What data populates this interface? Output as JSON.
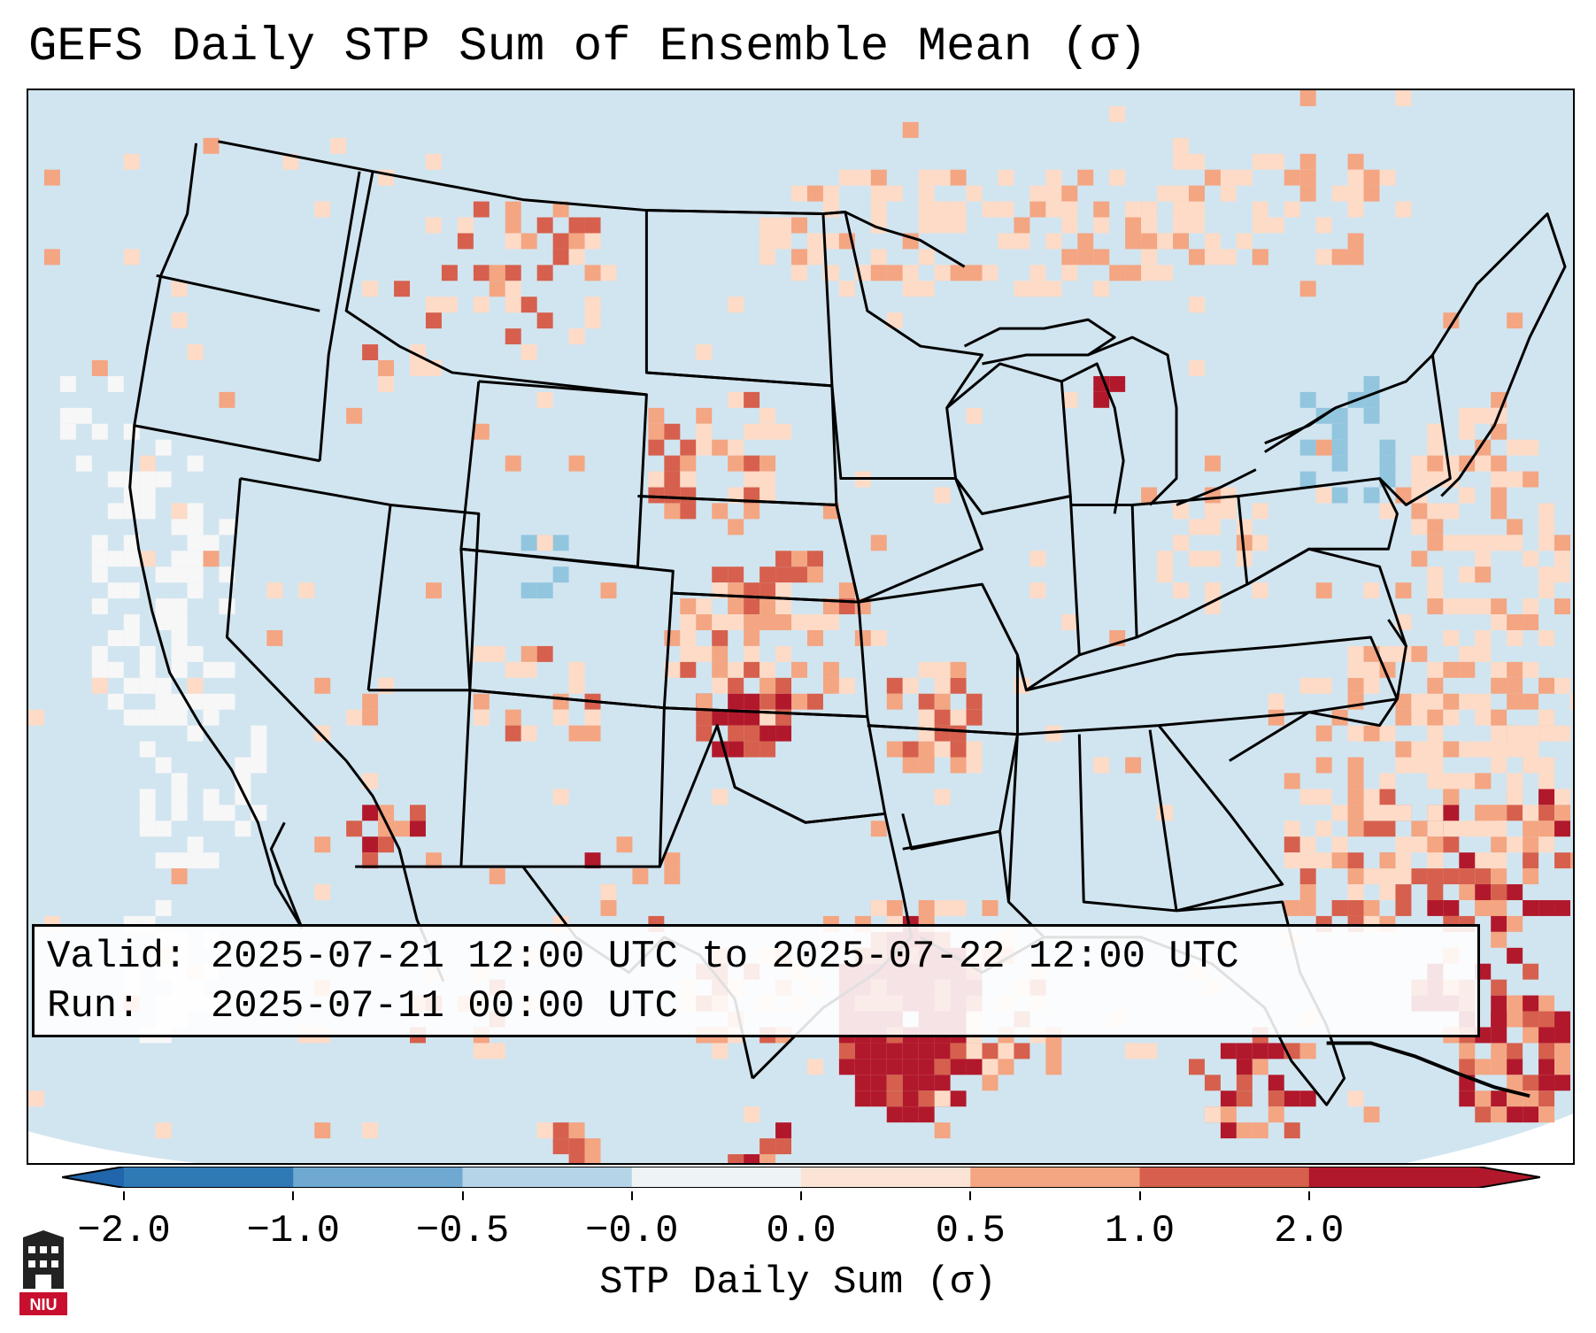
{
  "title": "GEFS Daily STP Sum of Ensemble Mean (σ)",
  "info": {
    "valid_label": "Valid:",
    "valid_value": "2025-07-21 12:00 UTC to 2025-07-22 12:00 UTC",
    "run_label": "Run:",
    "run_value": "2025-07-11 00:00 UTC"
  },
  "colorbar": {
    "label": "STP Daily Sum (σ)",
    "ticks": [
      "−2.0",
      "−1.0",
      "−0.5",
      "−0.0",
      "0.0",
      "0.5",
      "1.0",
      "2.0"
    ],
    "colors": [
      "#2f79b5",
      "#6fa9d2",
      "#b5d4e7",
      "#eef3f6",
      "#fbe3d6",
      "#f4a582",
      "#d6604d",
      "#b2182b"
    ],
    "under_color": "#2166ac",
    "over_color": "#b2182b"
  },
  "map": {
    "background_color": "#d1e5f0",
    "bins": {
      "white": "#f7f7f7",
      "light_pink": "#fddbc7",
      "salmon": "#f4a582",
      "red": "#d6604d",
      "dark_red": "#b2182b",
      "light_blue": "#92c5de"
    }
  },
  "logo": {
    "text": "NIU"
  }
}
